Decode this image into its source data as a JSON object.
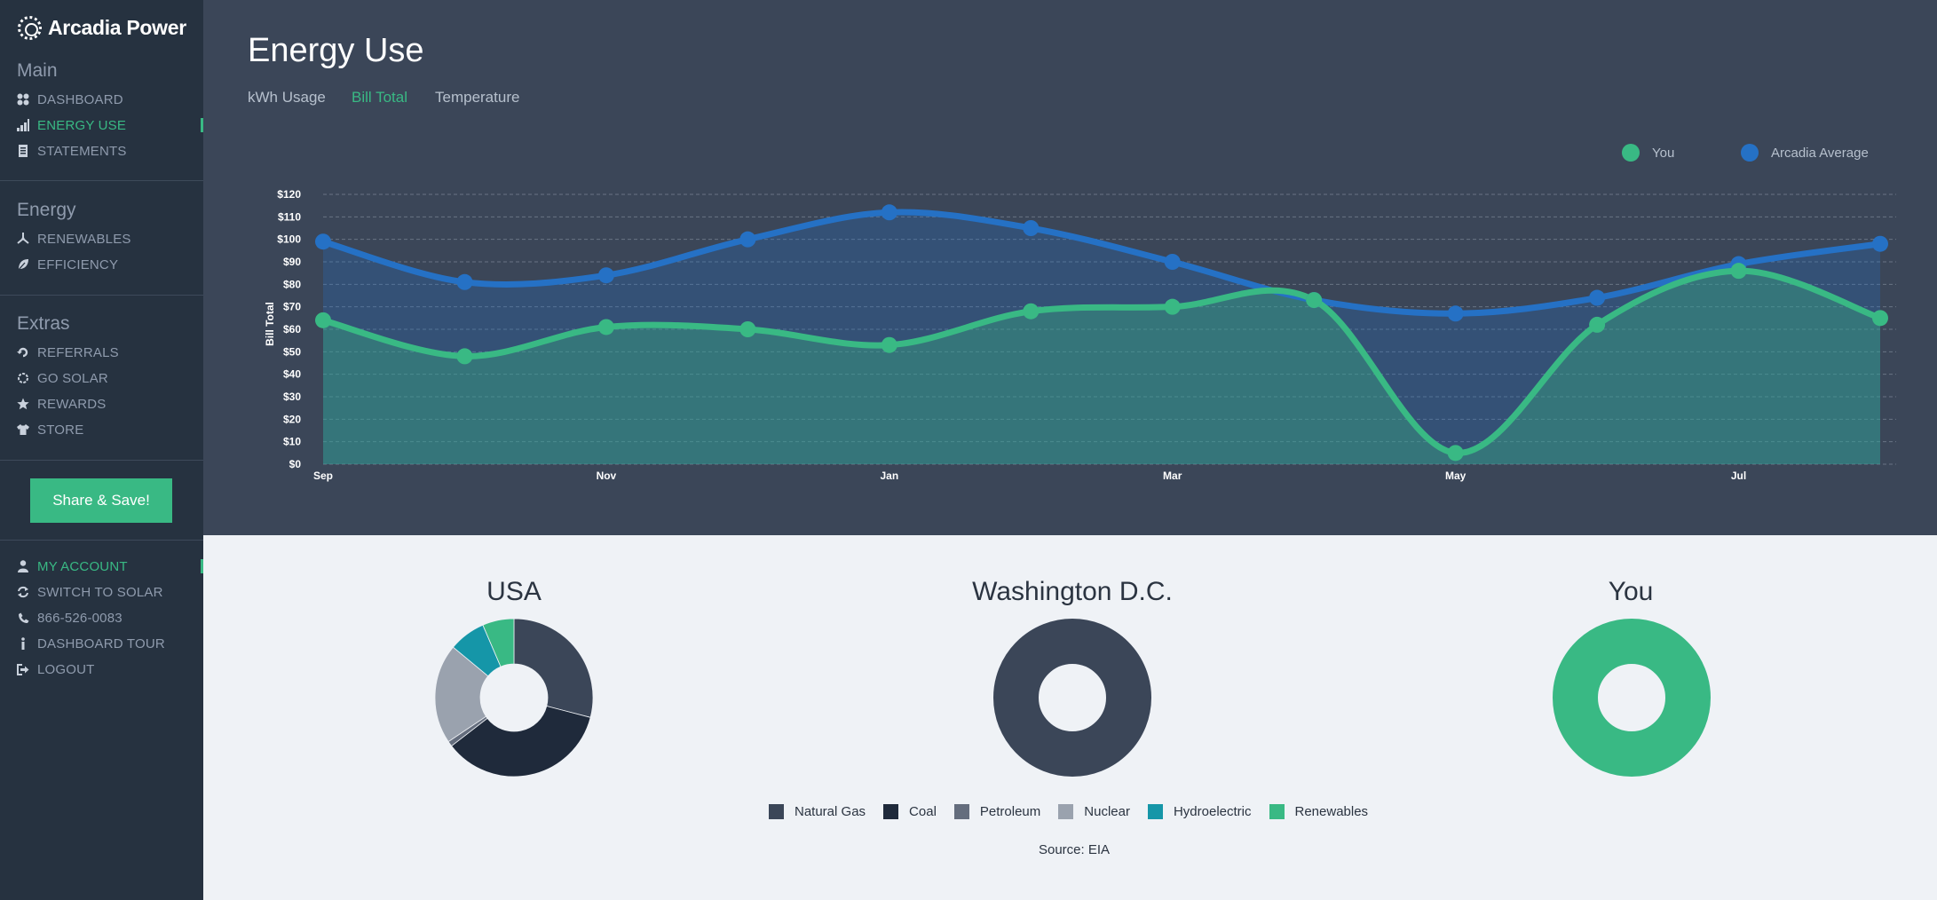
{
  "app": {
    "brand": "Arcadia Power"
  },
  "sidebar": {
    "sections": [
      {
        "title": "Main",
        "items": [
          {
            "label": "DASHBOARD",
            "icon": "dashboard-grid-icon",
            "active": false
          },
          {
            "label": "ENERGY USE",
            "icon": "bar-signal-icon",
            "active": true
          },
          {
            "label": "STATEMENTS",
            "icon": "document-icon",
            "active": false
          }
        ]
      },
      {
        "title": "Energy",
        "items": [
          {
            "label": "RENEWABLES",
            "icon": "wind-turbine-icon",
            "active": false
          },
          {
            "label": "EFFICIENCY",
            "icon": "leaf-icon",
            "active": false
          }
        ]
      },
      {
        "title": "Extras",
        "items": [
          {
            "label": "REFERRALS",
            "icon": "referral-icon",
            "active": false
          },
          {
            "label": "GO SOLAR",
            "icon": "sun-icon",
            "active": false
          },
          {
            "label": "REWARDS",
            "icon": "star-icon",
            "active": false
          },
          {
            "label": "STORE",
            "icon": "tshirt-icon",
            "active": false
          }
        ]
      }
    ],
    "share_button": "Share & Save!",
    "account_items": [
      {
        "label": "MY ACCOUNT",
        "icon": "user-icon",
        "active": true
      },
      {
        "label": "SWITCH TO SOLAR",
        "icon": "switch-arrows-icon",
        "active": false
      },
      {
        "label": "866-526-0083",
        "icon": "phone-icon",
        "active": false
      },
      {
        "label": "DASHBOARD TOUR",
        "icon": "info-icon",
        "active": false
      },
      {
        "label": "LOGOUT",
        "icon": "logout-icon",
        "active": false
      }
    ]
  },
  "main": {
    "title": "Energy Use",
    "tabs": [
      {
        "label": "kWh Usage",
        "active": false
      },
      {
        "label": "Bill Total",
        "active": true
      },
      {
        "label": "Temperature",
        "active": false
      }
    ]
  },
  "colors": {
    "you": "#39b984",
    "arcadia_average": "#2571c5",
    "natural_gas": "#3b4658",
    "coal": "#1f2a3b",
    "petroleum": "#646d7d",
    "nuclear": "#9aa2ae",
    "hydroelectric": "#1596a8",
    "renewables": "#39b984"
  },
  "chart_data": [
    {
      "type": "area",
      "ylabel": "Bill Total",
      "xlabel": "",
      "ylim": [
        0,
        120
      ],
      "yticks": [
        "$0",
        "$10",
        "$20",
        "$30",
        "$40",
        "$50",
        "$60",
        "$70",
        "$80",
        "$90",
        "$100",
        "$110",
        "$120"
      ],
      "x_tick_labels": [
        "Sep",
        "Nov",
        "Jan",
        "Mar",
        "May",
        "Jul"
      ],
      "legend_position": "top-right",
      "grid": true,
      "series": [
        {
          "name": "You",
          "values": [
            64,
            48,
            61,
            60,
            53,
            68,
            70,
            73,
            5,
            62,
            86,
            65
          ]
        },
        {
          "name": "Arcadia Average",
          "values": [
            99,
            81,
            84,
            100,
            112,
            105,
            90,
            73,
            67,
            74,
            89,
            98
          ]
        }
      ]
    },
    {
      "type": "pie",
      "title": "USA",
      "donut": true,
      "categories": [
        "Natural Gas",
        "Coal",
        "Petroleum",
        "Nuclear",
        "Hydroelectric",
        "Renewables"
      ],
      "values": [
        27,
        33,
        1,
        19,
        7,
        6
      ]
    },
    {
      "type": "pie",
      "title": "Washington D.C.",
      "donut": true,
      "categories": [
        "Natural Gas"
      ],
      "values": [
        100
      ]
    },
    {
      "type": "pie",
      "title": "You",
      "donut": true,
      "categories": [
        "Renewables"
      ],
      "values": [
        100
      ]
    }
  ],
  "energy_sources_legend": [
    "Natural Gas",
    "Coal",
    "Petroleum",
    "Nuclear",
    "Hydroelectric",
    "Renewables"
  ],
  "source_note": "Source: EIA"
}
